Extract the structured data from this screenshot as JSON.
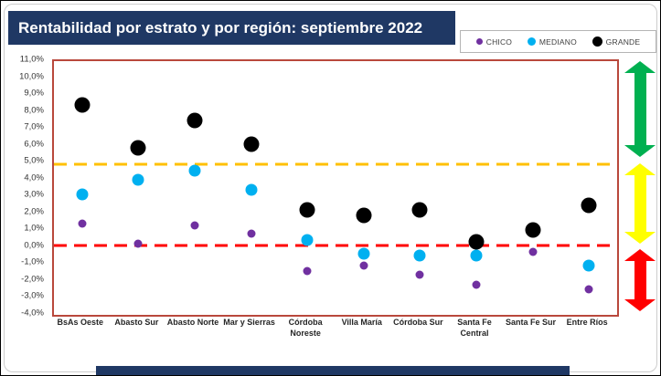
{
  "title": "Rentabilidad por estrato y por región: septiembre 2022",
  "legend": {
    "items": [
      {
        "label": "CHICO",
        "color": "#7030A0",
        "size": 7
      },
      {
        "label": "MEDIANO",
        "color": "#00B0F0",
        "size": 9
      },
      {
        "label": "GRANDE",
        "color": "#000000",
        "size": 11
      }
    ]
  },
  "colors": {
    "title_bg": "#1F3864",
    "plot_border": "#b9483c",
    "line_upper": "#FFC000",
    "line_lower": "#FF0000",
    "arrow_green": "#00B050",
    "arrow_yellow": "#FFFF00",
    "arrow_red": "#FF0000"
  },
  "chart_data": {
    "type": "scatter",
    "title": "Rentabilidad por estrato y por región: septiembre 2022",
    "xlabel": "",
    "ylabel": "",
    "ylim": [
      -4,
      11
    ],
    "grid": false,
    "legend_position": "top-right",
    "categories": [
      "BsAs Oeste",
      "Abasto Sur",
      "Abasto Norte",
      "Mar y Sierras",
      "Córdoba Noreste",
      "Villa María",
      "Córdoba Sur",
      "Santa Fe Central",
      "Santa Fe Sur",
      "Entre Ríos"
    ],
    "series": [
      {
        "name": "CHICO",
        "color": "#7030A0",
        "marker_px": 9,
        "values": [
          1.4,
          0.2,
          1.3,
          0.8,
          -1.4,
          -1.1,
          -1.6,
          -2.2,
          -0.3,
          -2.5
        ]
      },
      {
        "name": "MEDIANO",
        "color": "#00B0F0",
        "marker_px": 13,
        "values": [
          3.1,
          4.0,
          4.5,
          3.4,
          0.4,
          -0.4,
          -0.5,
          -0.5,
          1.0,
          -1.1
        ]
      },
      {
        "name": "GRANDE",
        "color": "#000000",
        "marker_px": 17,
        "values": [
          8.4,
          5.9,
          7.5,
          6.1,
          2.2,
          1.9,
          2.2,
          0.3,
          1.0,
          2.5
        ]
      }
    ],
    "y_ticks": [
      {
        "label": "11,0%",
        "value": 11
      },
      {
        "label": "10,0%",
        "value": 10
      },
      {
        "label": "9,0%",
        "value": 9
      },
      {
        "label": "8,0%",
        "value": 8
      },
      {
        "label": "7,0%",
        "value": 7
      },
      {
        "label": "6,0%",
        "value": 6
      },
      {
        "label": "5,0%",
        "value": 5
      },
      {
        "label": "4,0%",
        "value": 4
      },
      {
        "label": "3,0%",
        "value": 3
      },
      {
        "label": "2,0%",
        "value": 2
      },
      {
        "label": "1,0%",
        "value": 1
      },
      {
        "label": "0,0%",
        "value": 0
      },
      {
        "label": "-1,0%",
        "value": -1
      },
      {
        "label": "-2,0%",
        "value": -2
      },
      {
        "label": "-3,0%",
        "value": -3
      },
      {
        "label": "-4,0%",
        "value": -4
      }
    ],
    "reference_lines": [
      {
        "name": "upper-threshold",
        "value": 4.9,
        "color": "#FFC000",
        "style": "dashed"
      },
      {
        "name": "lower-threshold",
        "value": 0.1,
        "color": "#FF0000",
        "style": "dashed"
      }
    ],
    "zones": [
      {
        "name": "zone-high",
        "color": "#00B050",
        "from": 5.2,
        "to": 10.9
      },
      {
        "name": "zone-middle",
        "color": "#FFFF00",
        "from": 0.1,
        "to": 4.85
      },
      {
        "name": "zone-low",
        "color": "#FF0000",
        "from": -3.9,
        "to": -0.2
      }
    ]
  }
}
